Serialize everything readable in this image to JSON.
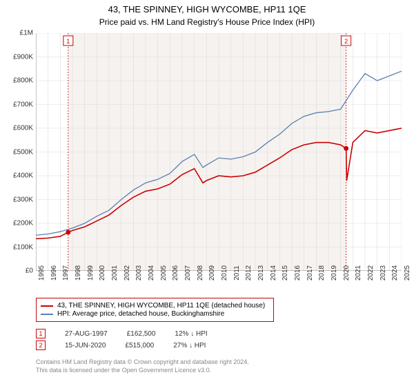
{
  "title_line1": "43, THE SPINNEY, HIGH WYCOMBE, HP11 1QE",
  "title_line2": "Price paid vs. HM Land Registry's House Price Index (HPI)",
  "chart": {
    "type": "line",
    "background_color": "#ffffff",
    "shaded_band_color": "#f6f2ef",
    "grid_color": "#dcdcdc",
    "axis_color": "#888888",
    "x_range": [
      1995,
      2025
    ],
    "y_range": [
      0,
      1000000
    ],
    "x_ticks": [
      1995,
      1996,
      1997,
      1998,
      1999,
      2000,
      2001,
      2002,
      2003,
      2004,
      2005,
      2006,
      2007,
      2008,
      2009,
      2010,
      2011,
      2012,
      2013,
      2014,
      2015,
      2016,
      2017,
      2018,
      2019,
      2020,
      2021,
      2022,
      2023,
      2024,
      2025
    ],
    "y_ticks": [
      0,
      100000,
      200000,
      300000,
      400000,
      500000,
      600000,
      700000,
      800000,
      900000,
      1000000
    ],
    "y_tick_labels": [
      "£0",
      "£100K",
      "£200K",
      "£300K",
      "£400K",
      "£500K",
      "£600K",
      "£700K",
      "£800K",
      "£900K",
      "£1M"
    ],
    "tick_fontsize": 10,
    "shaded_band_x": [
      1997.65,
      2020.45
    ],
    "marker_lines": [
      {
        "x": 1997.65,
        "label": "1",
        "color": "#cc0000"
      },
      {
        "x": 2020.45,
        "label": "2",
        "color": "#cc0000"
      }
    ],
    "series": [
      {
        "name": "property",
        "color": "#cc0000",
        "width": 1.6,
        "legend": "43, THE SPINNEY, HIGH WYCOMBE, HP11 1QE (detached house)",
        "points": [
          [
            1995,
            135000
          ],
          [
            1996,
            138000
          ],
          [
            1997,
            145000
          ],
          [
            1997.65,
            162500
          ],
          [
            1998,
            170000
          ],
          [
            1999,
            185000
          ],
          [
            2000,
            210000
          ],
          [
            2001,
            235000
          ],
          [
            2002,
            275000
          ],
          [
            2003,
            310000
          ],
          [
            2004,
            335000
          ],
          [
            2005,
            345000
          ],
          [
            2006,
            365000
          ],
          [
            2007,
            405000
          ],
          [
            2008,
            430000
          ],
          [
            2008.7,
            370000
          ],
          [
            2009,
            380000
          ],
          [
            2010,
            400000
          ],
          [
            2011,
            395000
          ],
          [
            2012,
            400000
          ],
          [
            2013,
            415000
          ],
          [
            2014,
            445000
          ],
          [
            2015,
            475000
          ],
          [
            2016,
            510000
          ],
          [
            2017,
            530000
          ],
          [
            2018,
            540000
          ],
          [
            2019,
            540000
          ],
          [
            2020,
            530000
          ],
          [
            2020.45,
            515000
          ],
          [
            2020.5,
            380000
          ],
          [
            2021,
            540000
          ],
          [
            2022,
            590000
          ],
          [
            2023,
            580000
          ],
          [
            2024,
            590000
          ],
          [
            2025,
            600000
          ]
        ],
        "sale_markers": [
          {
            "x": 1997.65,
            "y": 162500
          },
          {
            "x": 2020.45,
            "y": 515000
          }
        ]
      },
      {
        "name": "hpi",
        "color": "#5b7fb0",
        "width": 1.3,
        "legend": "HPI: Average price, detached house, Buckinghamshire",
        "points": [
          [
            1995,
            150000
          ],
          [
            1996,
            155000
          ],
          [
            1997,
            165000
          ],
          [
            1998,
            180000
          ],
          [
            1999,
            200000
          ],
          [
            2000,
            230000
          ],
          [
            2001,
            255000
          ],
          [
            2002,
            300000
          ],
          [
            2003,
            340000
          ],
          [
            2004,
            370000
          ],
          [
            2005,
            385000
          ],
          [
            2006,
            410000
          ],
          [
            2007,
            460000
          ],
          [
            2008,
            490000
          ],
          [
            2008.7,
            435000
          ],
          [
            2009,
            445000
          ],
          [
            2010,
            475000
          ],
          [
            2011,
            470000
          ],
          [
            2012,
            480000
          ],
          [
            2013,
            500000
          ],
          [
            2014,
            540000
          ],
          [
            2015,
            575000
          ],
          [
            2016,
            620000
          ],
          [
            2017,
            650000
          ],
          [
            2018,
            665000
          ],
          [
            2019,
            670000
          ],
          [
            2020,
            680000
          ],
          [
            2021,
            760000
          ],
          [
            2022,
            830000
          ],
          [
            2023,
            800000
          ],
          [
            2024,
            820000
          ],
          [
            2025,
            840000
          ]
        ]
      }
    ]
  },
  "sales": [
    {
      "marker": "1",
      "date": "27-AUG-1997",
      "price": "£162,500",
      "diff": "12% ↓ HPI"
    },
    {
      "marker": "2",
      "date": "15-JUN-2020",
      "price": "£515,000",
      "diff": "27% ↓ HPI"
    }
  ],
  "attribution_line1": "Contains HM Land Registry data © Crown copyright and database right 2024.",
  "attribution_line2": "This data is licensed under the Open Government Licence v3.0."
}
